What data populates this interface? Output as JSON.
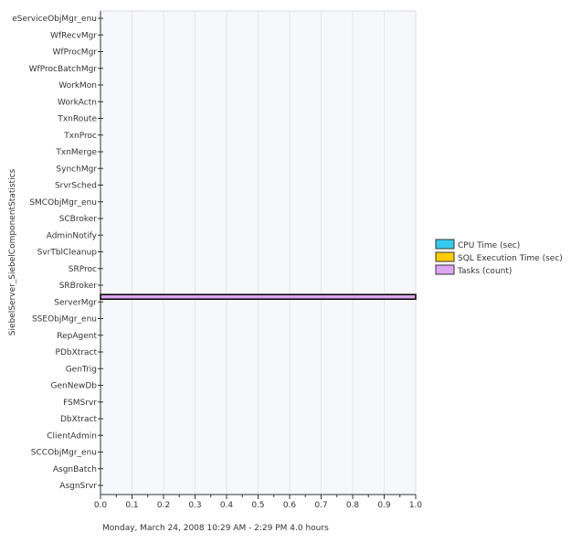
{
  "chart_data": {
    "type": "bar",
    "orientation": "horizontal",
    "ylabel": "SiebelServer_SiebelComponentStatistics",
    "xlabel": "Monday, March 24, 2008  10:29 AM - 2:29 PM  4.0 hours",
    "xlim": [
      0,
      1
    ],
    "xticks": [
      "0.0",
      "0.1",
      "0.2",
      "0.3",
      "0.4",
      "0.5",
      "0.6",
      "0.7",
      "0.8",
      "0.9",
      "1.0"
    ],
    "grid": true,
    "legend_placement": "right",
    "categories": [
      "eServiceObjMgr_enu",
      "WfRecvMgr",
      "WfProcMgr",
      "WfProcBatchMgr",
      "WorkMon",
      "WorkActn",
      "TxnRoute",
      "TxnProc",
      "TxnMerge",
      "SynchMgr",
      "SrvrSched",
      "SMCObjMgr_enu",
      "SCBroker",
      "AdminNotify",
      "SvrTblCleanup",
      "SRProc",
      "SRBroker",
      "ServerMgr",
      "SSEObjMgr_enu",
      "RepAgent",
      "PDbXtract",
      "GenTrig",
      "GenNewDb",
      "FSMSrvr",
      "DbXtract",
      "ClientAdmin",
      "SCCObjMgr_enu",
      "AsgnBatch",
      "AsgnSrvr"
    ],
    "series": [
      {
        "name": "CPU Time (sec)",
        "color": "#33ccee",
        "values": [
          0,
          0,
          0,
          0,
          0,
          0,
          0,
          0,
          0,
          0,
          0,
          0,
          0,
          0,
          0,
          0,
          0,
          0,
          0,
          0,
          0,
          0,
          0,
          0,
          0,
          0,
          0,
          0,
          0
        ]
      },
      {
        "name": "SQL Execution Time (sec)",
        "color": "#ffcc00",
        "values": [
          0,
          0,
          0,
          0,
          0,
          0,
          0,
          0,
          0,
          0,
          0,
          0,
          0,
          0,
          0,
          0,
          0,
          0,
          0,
          0,
          0,
          0,
          0,
          0,
          0,
          0,
          0,
          0,
          0
        ]
      },
      {
        "name": "Tasks (count)",
        "color": "#dda6f2",
        "values": [
          0,
          0,
          0,
          0,
          0,
          0,
          0,
          0,
          0,
          0,
          0,
          0,
          0,
          0,
          0,
          0,
          0,
          1,
          0,
          0,
          0,
          0,
          0,
          0,
          0,
          0,
          0,
          0,
          0
        ]
      }
    ]
  }
}
